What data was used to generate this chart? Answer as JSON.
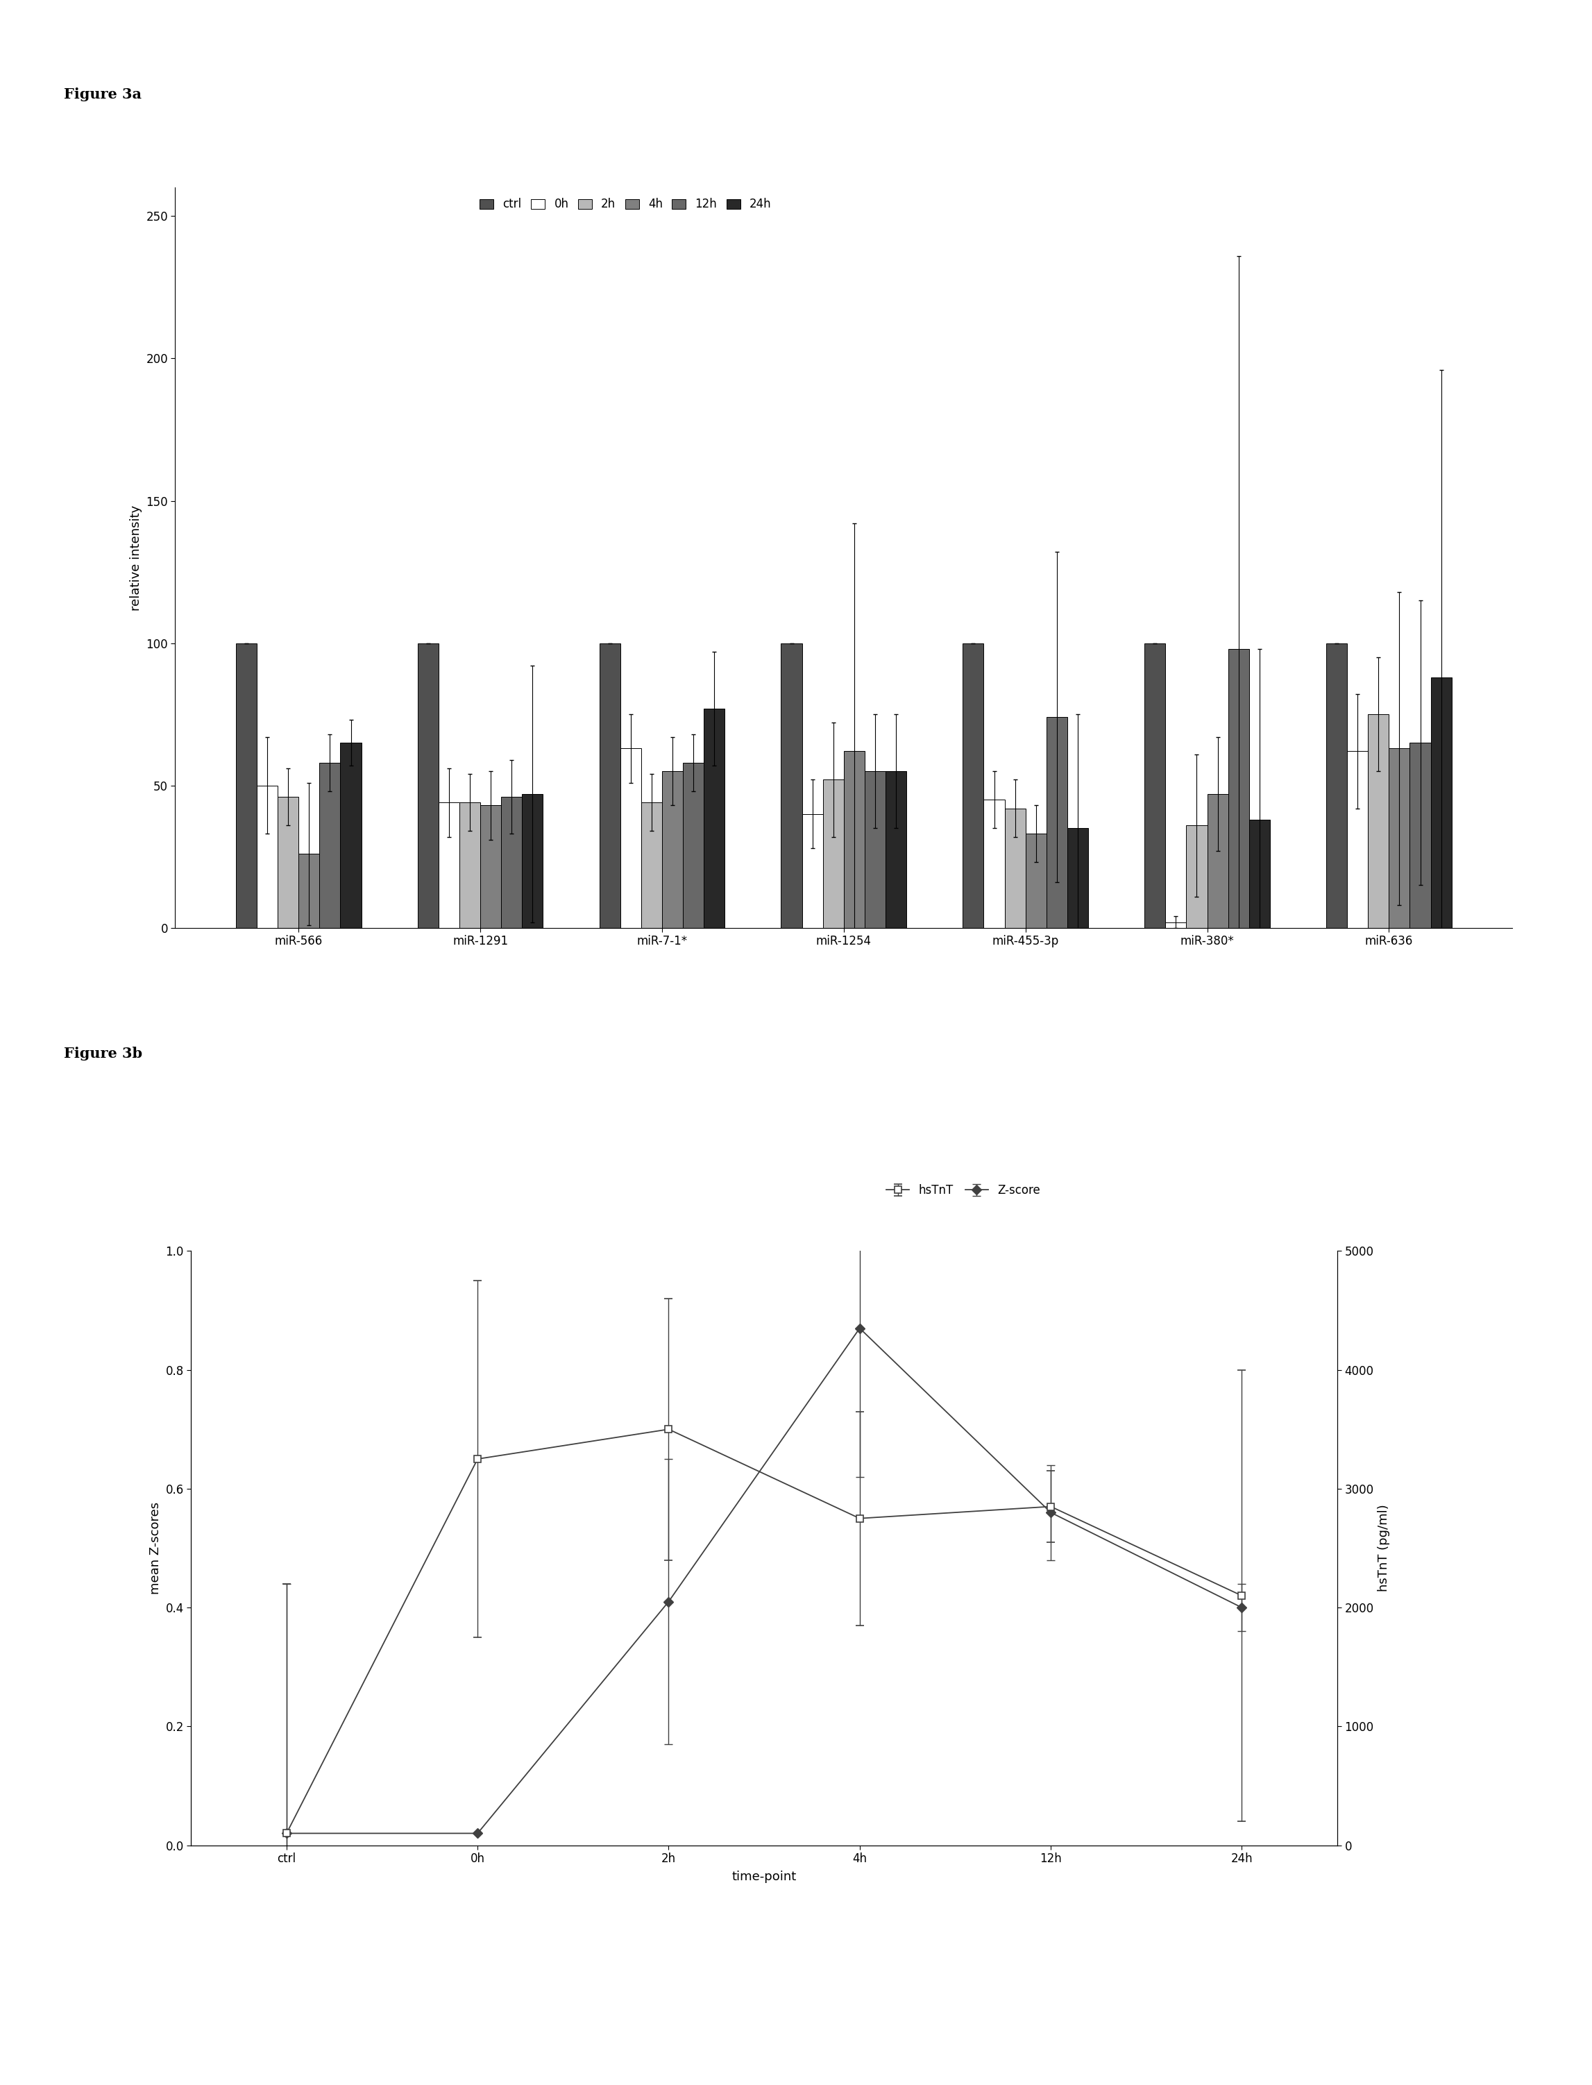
{
  "fig3a": {
    "title": "Figure 3a",
    "ylabel": "relative intensity",
    "ylim": [
      0,
      260
    ],
    "yticks": [
      0,
      50,
      100,
      150,
      200,
      250
    ],
    "categories": [
      "miR-566",
      "miR-1291",
      "miR-7-1*",
      "miR-1254",
      "miR-455-3p",
      "miR-380*",
      "miR-636"
    ],
    "legend_labels": [
      "ctrl",
      "0h",
      "2h",
      "4h",
      "12h",
      "24h"
    ],
    "bar_colors": [
      "#505050",
      "#ffffff",
      "#b8b8b8",
      "#808080",
      "#686868",
      "#282828"
    ],
    "bar_edge": "#000000",
    "values": {
      "miR-566": [
        100,
        50,
        46,
        26,
        58,
        65
      ],
      "miR-1291": [
        100,
        44,
        44,
        43,
        46,
        47
      ],
      "miR-7-1*": [
        100,
        63,
        44,
        55,
        58,
        77
      ],
      "miR-1254": [
        100,
        40,
        52,
        62,
        55,
        55
      ],
      "miR-455-3p": [
        100,
        45,
        42,
        33,
        74,
        35
      ],
      "miR-380*": [
        100,
        2,
        36,
        47,
        98,
        38
      ],
      "miR-636": [
        100,
        62,
        75,
        63,
        65,
        88
      ]
    },
    "errors": {
      "miR-566": [
        0,
        17,
        10,
        25,
        10,
        8
      ],
      "miR-1291": [
        0,
        12,
        10,
        12,
        13,
        45
      ],
      "miR-7-1*": [
        0,
        12,
        10,
        12,
        10,
        20
      ],
      "miR-1254": [
        0,
        12,
        20,
        80,
        20,
        20
      ],
      "miR-455-3p": [
        0,
        10,
        10,
        10,
        58,
        40
      ],
      "miR-380*": [
        0,
        2,
        25,
        20,
        138,
        60
      ],
      "miR-636": [
        0,
        20,
        20,
        55,
        50,
        108
      ]
    }
  },
  "fig3b": {
    "title": "Figure 3b",
    "xlabel": "time-point",
    "ylabel_left": "mean Z-scores",
    "ylabel_right": "hsTnT (pg/ml)",
    "ylim_left": [
      0,
      1.0
    ],
    "yticks_left": [
      0,
      0.2,
      0.4,
      0.6,
      0.8,
      1.0
    ],
    "yticks_right_labels": [
      "0",
      "1000",
      "2000",
      "3000",
      "4000",
      "5000"
    ],
    "xticklabels": [
      "ctrl",
      "0h",
      "2h",
      "4h",
      "12h",
      "24h"
    ],
    "zscore_values": [
      0.02,
      0.02,
      0.41,
      0.87,
      0.56,
      0.4
    ],
    "zscore_errors": [
      0.42,
      0.0,
      0.24,
      0.25,
      0.08,
      0.04
    ],
    "hstnt_values": [
      0.02,
      0.65,
      0.7,
      0.55,
      0.57,
      0.42
    ],
    "hstnt_errors": [
      0.42,
      0.3,
      0.22,
      0.18,
      0.06,
      0.38
    ],
    "legend_labels": [
      "hsTnT",
      "Z-score"
    ],
    "line_color": "#404040"
  }
}
